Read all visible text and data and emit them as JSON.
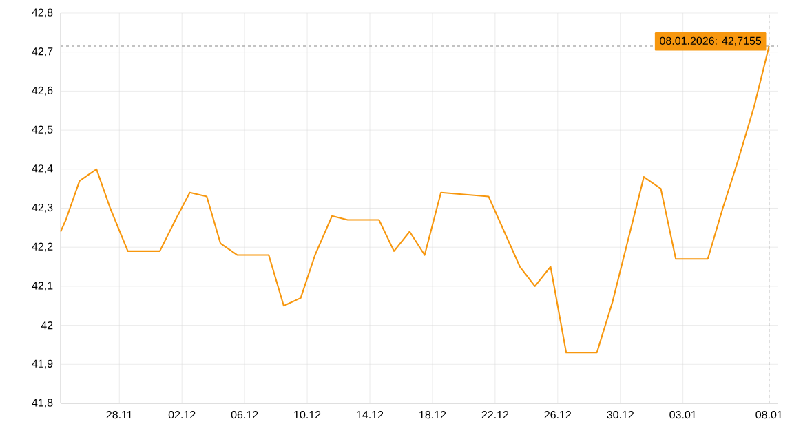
{
  "chart_data": {
    "type": "line",
    "x": [
      "2025-11-24T06:00",
      "2025-11-24T14:00",
      "2025-11-25T11:00",
      "2025-11-26T13:00",
      "2025-11-27T10:00",
      "2025-11-28T13:00",
      "2025-11-30T14:00",
      "2025-12-01T14:00",
      "2025-12-02T12:00",
      "2025-12-03T14:00",
      "2025-12-04T11:00",
      "2025-12-05T13:00",
      "2025-12-07T13:00",
      "2025-12-08T12:00",
      "2025-12-09T14:00",
      "2025-12-10T12:00",
      "2025-12-11T14:00",
      "2025-12-12T14:00",
      "2025-12-14T14:00",
      "2025-12-15T13:00",
      "2025-12-16T13:00",
      "2025-12-17T12:00",
      "2025-12-18T13:00",
      "2025-12-21T14:00",
      "2025-12-22T14:00",
      "2025-12-23T14:00",
      "2025-12-24T13:00",
      "2025-12-25T13:00",
      "2025-12-26T13:00",
      "2025-12-28T12:00",
      "2025-12-29T12:00",
      "2025-12-30T12:00",
      "2025-12-31T12:00",
      "2026-01-01T14:00",
      "2026-01-02T13:00",
      "2026-01-04T14:00",
      "2026-01-05T13:00",
      "2026-01-06T12:00",
      "2026-01-07T13:00",
      "2026-01-08T12:00"
    ],
    "series": [
      {
        "color": "#f7970e",
        "values": [
          42.24,
          42.27,
          42.37,
          42.4,
          42.3,
          42.19,
          42.19,
          42.27,
          42.34,
          42.33,
          42.21,
          42.18,
          42.18,
          42.05,
          42.07,
          42.18,
          42.28,
          42.27,
          42.27,
          42.19,
          42.24,
          42.18,
          42.34,
          42.33,
          42.24,
          42.15,
          42.1,
          42.15,
          41.93,
          41.93,
          42.06,
          42.22,
          42.38,
          42.35,
          42.17,
          42.17,
          42.3,
          42.42,
          42.56,
          42.7155
        ]
      }
    ],
    "xlim": [
      "2025-11-24T06:00",
      "2026-01-09T02:00"
    ],
    "ylim": [
      41.8,
      42.8
    ],
    "xticks": [
      {
        "value": "2025-11-28",
        "label": "28.11"
      },
      {
        "value": "2025-12-02",
        "label": "02.12"
      },
      {
        "value": "2025-12-06",
        "label": "06.12"
      },
      {
        "value": "2025-12-10",
        "label": "10.12"
      },
      {
        "value": "2025-12-14",
        "label": "14.12"
      },
      {
        "value": "2025-12-18",
        "label": "18.12"
      },
      {
        "value": "2025-12-22",
        "label": "22.12"
      },
      {
        "value": "2025-12-26",
        "label": "26.12"
      },
      {
        "value": "2025-12-30",
        "label": "30.12"
      },
      {
        "value": "2026-01-03",
        "label": "03.01"
      },
      {
        "value": "2026-01-08T12:00",
        "label": "08.01"
      }
    ],
    "yticks": [
      {
        "value": 41.8,
        "label": "41,8"
      },
      {
        "value": 41.9,
        "label": "41,9"
      },
      {
        "value": 42,
        "label": "42"
      },
      {
        "value": 42.1,
        "label": "42,1"
      },
      {
        "value": 42.2,
        "label": "42,2"
      },
      {
        "value": 42.3,
        "label": "42,3"
      },
      {
        "value": 42.4,
        "label": "42,4"
      },
      {
        "value": 42.5,
        "label": "42,5"
      },
      {
        "value": 42.6,
        "label": "42,6"
      },
      {
        "value": 42.7,
        "label": "42,7"
      },
      {
        "value": 42.8,
        "label": "42,8"
      }
    ],
    "grid": true,
    "ref_lines": [
      {
        "axis": "y",
        "value": 42.7155,
        "color": "#888888",
        "line_style": "dashed"
      },
      {
        "axis": "x",
        "value": "2026-01-08T12:00",
        "color": "#888888",
        "line_style": "dashed"
      }
    ],
    "annotations": [
      {
        "text": "08.01.2026: 42,7155",
        "x": "2026-01-08T12:00",
        "y": 42.7155
      }
    ]
  }
}
